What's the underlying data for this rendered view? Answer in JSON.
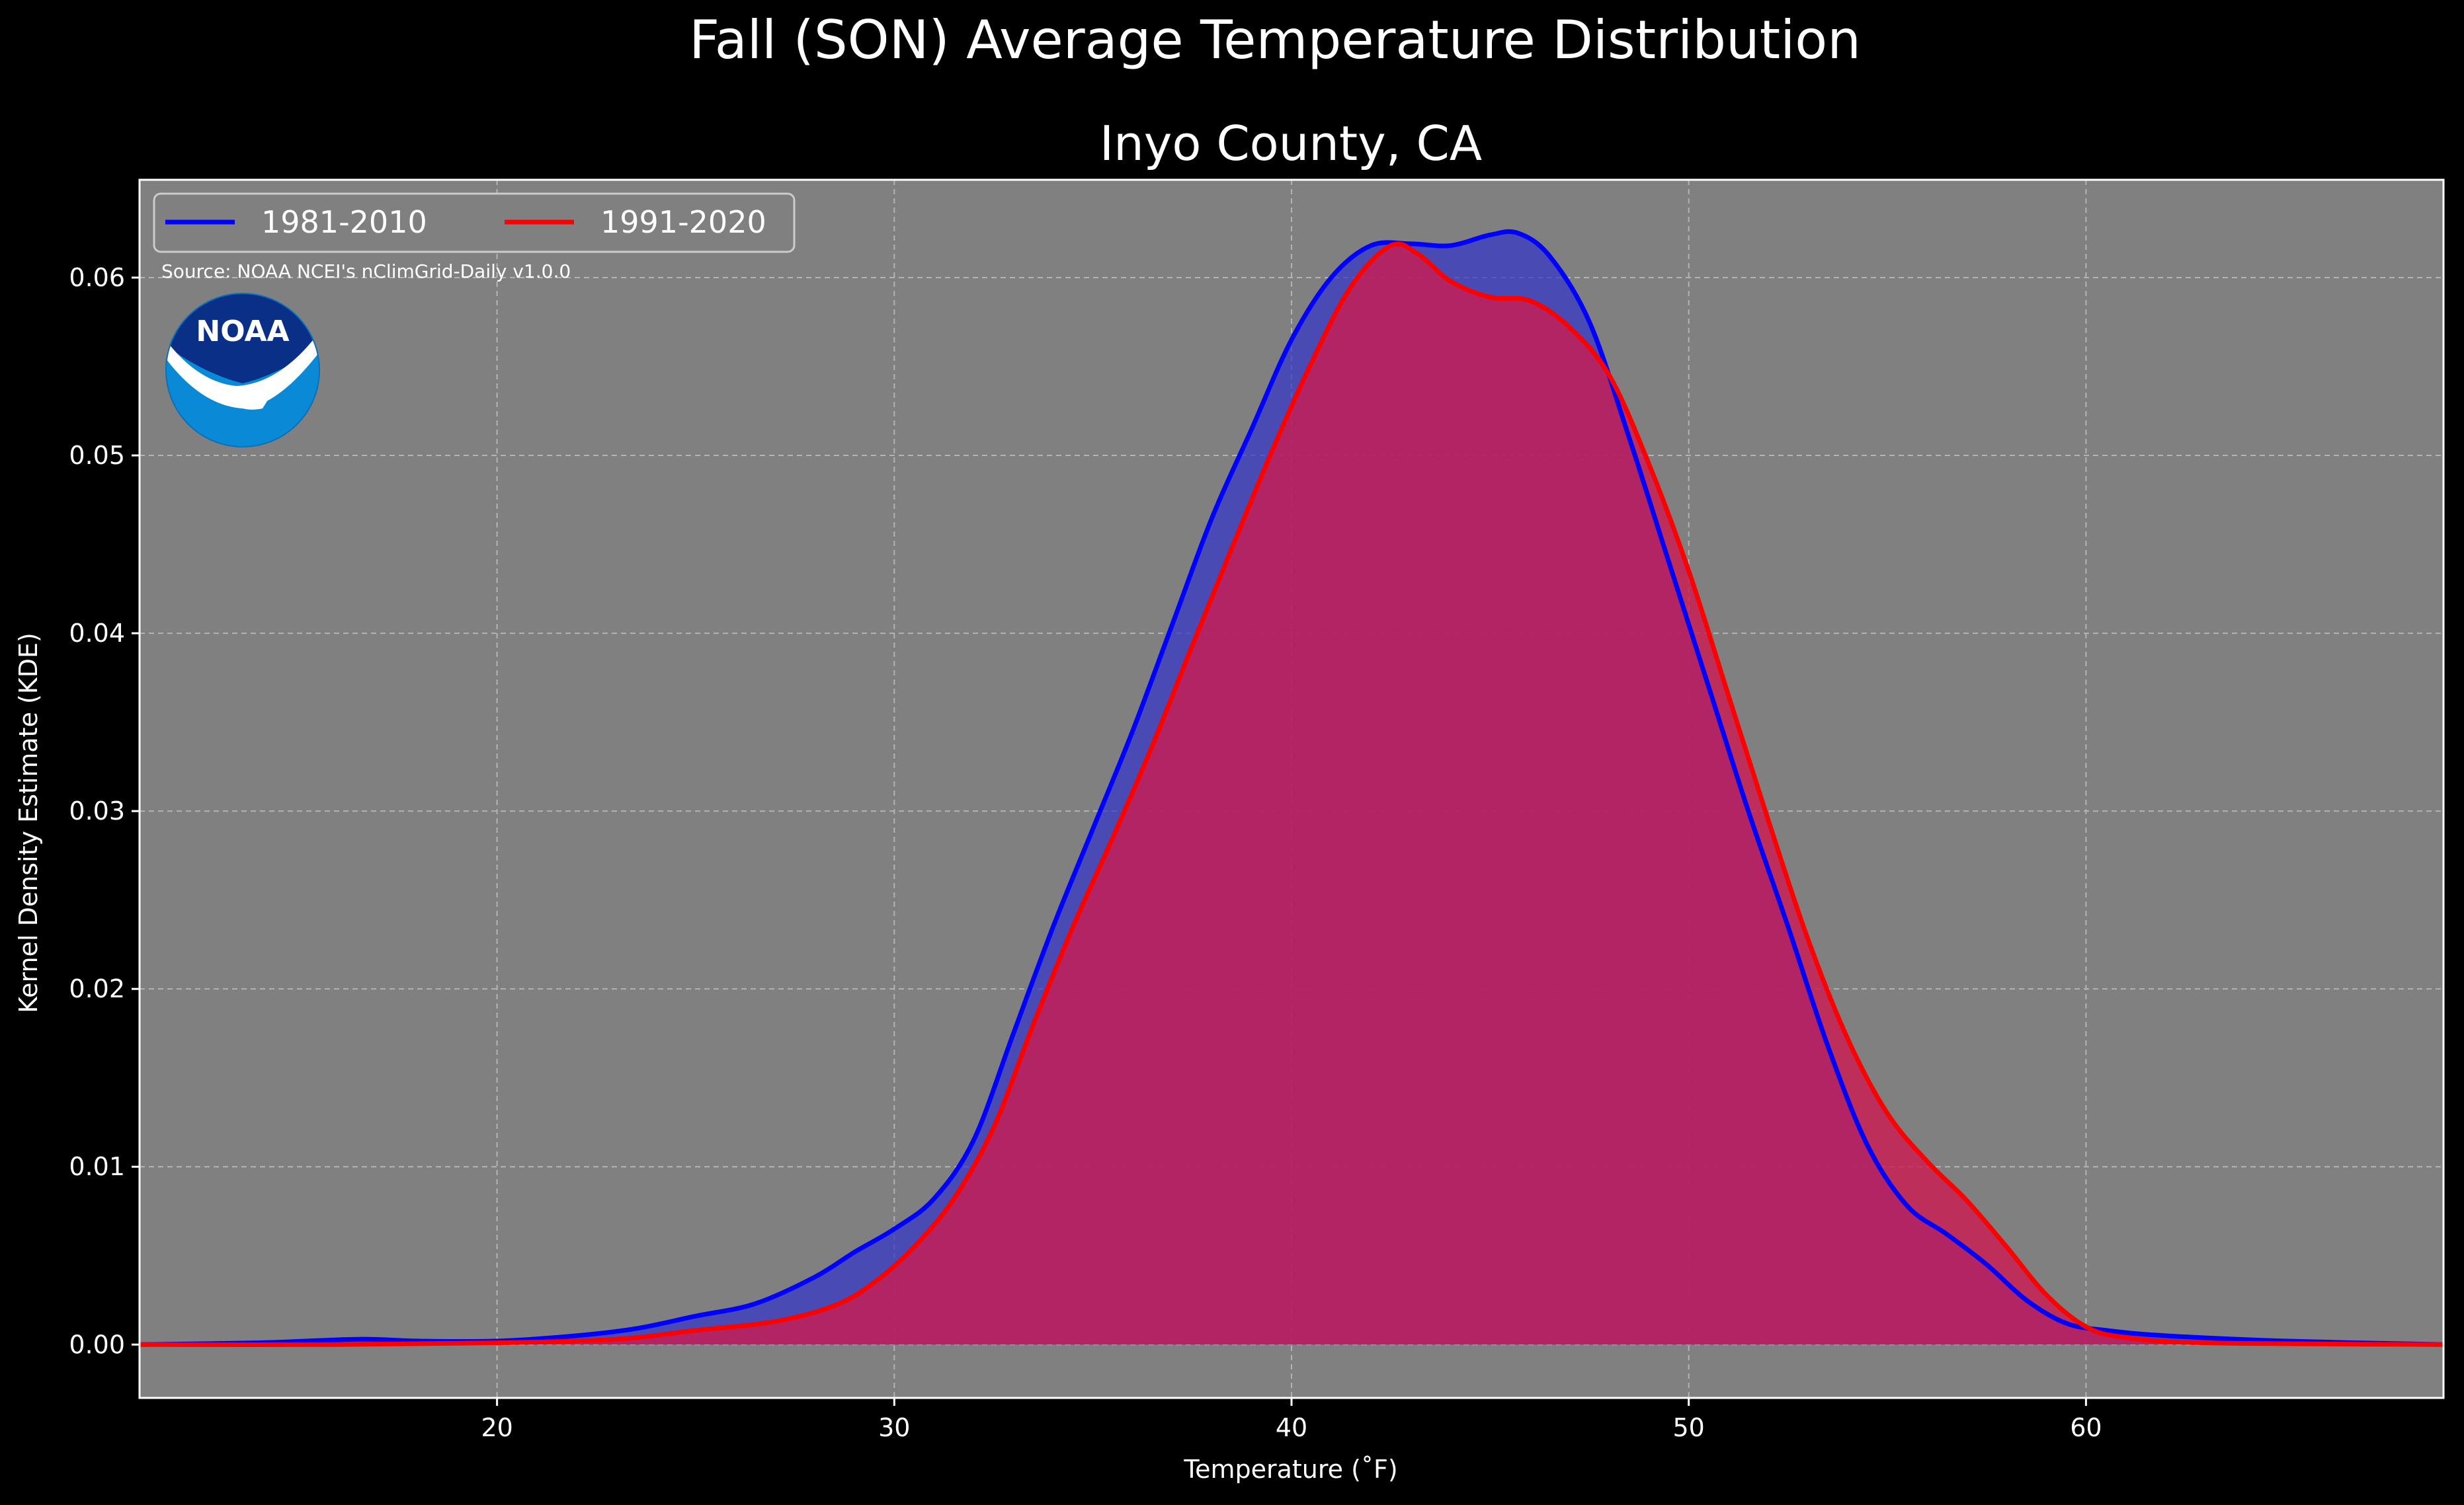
{
  "chart_data": {
    "type": "area",
    "suptitle": "Fall (SON) Average Temperature Distribution",
    "title": "Inyo County, CA",
    "xlabel": "Temperature (˚F)",
    "ylabel": "Kernel Density Estimate (KDE)",
    "xlim": [
      11,
      69
    ],
    "ylim": [
      -0.003,
      0.0655
    ],
    "xticks": [
      20,
      30,
      40,
      50,
      60
    ],
    "yticks": [
      0.0,
      0.01,
      0.02,
      0.03,
      0.04,
      0.05,
      0.06
    ],
    "ytick_labels": [
      "0.00",
      "0.01",
      "0.02",
      "0.03",
      "0.04",
      "0.05",
      "0.06"
    ],
    "grid": true,
    "legend_position": "top-left",
    "source_note": "Source: NOAA NCEI's nClimGrid-Daily v1.0.0",
    "logo_text": "NOAA",
    "background_color": "#000000",
    "plot_background_color": "#808080",
    "series": [
      {
        "name": "1981-2010",
        "color": "#0000ff",
        "fill_color": "#3333cc",
        "x": [
          11,
          14,
          16.5,
          18,
          20,
          22,
          23.5,
          25,
          26.5,
          28,
          29,
          30,
          31,
          32,
          33,
          34,
          35,
          36,
          37,
          38,
          39,
          40,
          41,
          42,
          43,
          44,
          45,
          45.7,
          46.5,
          47.5,
          48.5,
          49.5,
          50.5,
          51.5,
          52.5,
          53.5,
          54.5,
          55.5,
          56.5,
          57.5,
          58.5,
          59.5,
          60.5,
          62,
          65,
          69
        ],
        "y": [
          0.0,
          0.0001,
          0.0003,
          0.0002,
          0.0002,
          0.0005,
          0.0009,
          0.0016,
          0.0023,
          0.0038,
          0.0052,
          0.0065,
          0.0082,
          0.0115,
          0.0175,
          0.0235,
          0.029,
          0.0345,
          0.0405,
          0.0465,
          0.0515,
          0.0565,
          0.06,
          0.0618,
          0.0619,
          0.0618,
          0.0624,
          0.0625,
          0.0612,
          0.0575,
          0.051,
          0.044,
          0.037,
          0.03,
          0.0235,
          0.0168,
          0.0112,
          0.0078,
          0.0062,
          0.0045,
          0.0025,
          0.0012,
          0.0008,
          0.0005,
          0.0002,
          0.0
        ]
      },
      {
        "name": "1991-2020",
        "color": "#ff0000",
        "fill_color": "#cc1a50",
        "x": [
          11,
          16,
          20,
          23,
          25,
          27,
          28.5,
          29.5,
          30.5,
          31.5,
          32.5,
          33.5,
          34.5,
          35.5,
          36.5,
          37.5,
          38.5,
          39.5,
          40.5,
          41.5,
          42.5,
          43.2,
          44,
          45,
          46,
          47,
          48,
          49,
          50,
          51,
          52,
          53,
          54,
          55,
          56,
          57,
          58,
          59,
          60,
          61,
          63,
          69
        ],
        "y": [
          0.0,
          0.0,
          0.0001,
          0.0003,
          0.0008,
          0.0013,
          0.0022,
          0.0035,
          0.0055,
          0.0082,
          0.0122,
          0.018,
          0.0235,
          0.0285,
          0.0337,
          0.0393,
          0.0448,
          0.0502,
          0.0552,
          0.0595,
          0.0618,
          0.0613,
          0.0598,
          0.0589,
          0.0587,
          0.0572,
          0.0545,
          0.0495,
          0.0435,
          0.0365,
          0.0295,
          0.0228,
          0.0172,
          0.013,
          0.0103,
          0.0081,
          0.0055,
          0.0028,
          0.001,
          0.0004,
          0.0001,
          0.0
        ]
      }
    ]
  }
}
